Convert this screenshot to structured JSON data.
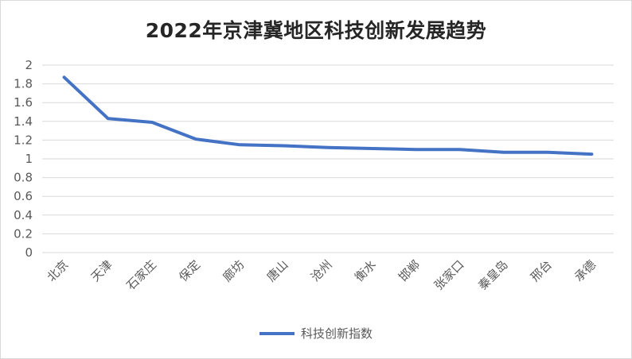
{
  "chart_data": {
    "type": "line",
    "title": "2022年京津冀地区科技创新发展趋势",
    "categories": [
      "北京",
      "天津",
      "石家庄",
      "保定",
      "廊坊",
      "唐山",
      "沧州",
      "衡水",
      "邯郸",
      "张家口",
      "秦皇岛",
      "邢台",
      "承德"
    ],
    "series": [
      {
        "name": "科技创新指数",
        "values": [
          1.87,
          1.43,
          1.39,
          1.21,
          1.15,
          1.14,
          1.12,
          1.11,
          1.1,
          1.1,
          1.07,
          1.07,
          1.05
        ],
        "color": "#4472c4"
      }
    ],
    "ylim": [
      0,
      2
    ],
    "yticks": [
      "0",
      "0.2",
      "0.4",
      "0.6",
      "0.8",
      "1",
      "1.2",
      "1.4",
      "1.6",
      "1.8",
      "2"
    ],
    "grid": true,
    "legend_position": "bottom"
  }
}
